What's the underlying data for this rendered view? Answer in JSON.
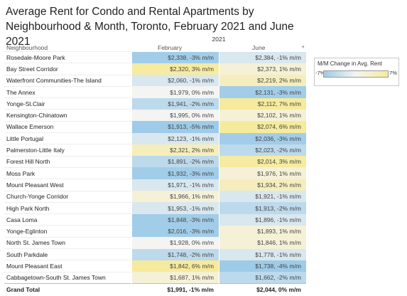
{
  "title_line1": "Average Rent for Condo and Rental Apartments by",
  "title_line2": "Neighbourhood & Month, Toronto, February 2021 and June 2021",
  "year_header": "2021",
  "col_neighbourhood": "Neighbourhood",
  "col_february": "February",
  "col_june": "June",
  "legend": {
    "title": "M/M Change in Avg. Rent",
    "min_label": "-7%",
    "max_label": "7%",
    "min_value": -7,
    "max_value": 7,
    "color_low": "#9dcbe8",
    "color_mid": "#f4f4f2",
    "color_high": "#f6ea9c"
  },
  "chart_data": {
    "type": "table",
    "rows": [
      {
        "name": "Rosedale-Moore Park",
        "feb": "$2,338, -3% m/m",
        "feb_change": -3,
        "jun": "$2,384, -1% m/m",
        "jun_change": -1
      },
      {
        "name": "Bay Street Corridor",
        "feb": "$2,320, 3% m/m",
        "feb_change": 3,
        "jun": "$2,373, 1% m/m",
        "jun_change": 1
      },
      {
        "name": "Waterfront Communities-The Island",
        "feb": "$2,060, -1% m/m",
        "feb_change": -1,
        "jun": "$2,219, 2% m/m",
        "jun_change": 2
      },
      {
        "name": "The Annex",
        "feb": "$1,979, 0% m/m",
        "feb_change": 0,
        "jun": "$2,131, -3% m/m",
        "jun_change": -3
      },
      {
        "name": "Yonge-St.Clair",
        "feb": "$1,941, -2% m/m",
        "feb_change": -2,
        "jun": "$2,112, 7% m/m",
        "jun_change": 7
      },
      {
        "name": "Kensington-Chinatown",
        "feb": "$1,995, 0% m/m",
        "feb_change": 0,
        "jun": "$2,102, 1% m/m",
        "jun_change": 1
      },
      {
        "name": "Wallace Emerson",
        "feb": "$1,913, -5% m/m",
        "feb_change": -5,
        "jun": "$2,074, 6% m/m",
        "jun_change": 6
      },
      {
        "name": "Little Portugal",
        "feb": "$2,123, -1% m/m",
        "feb_change": -1,
        "jun": "$2,036, -3% m/m",
        "jun_change": -3
      },
      {
        "name": "Palmerston-Little Italy",
        "feb": "$2,321, 2% m/m",
        "feb_change": 2,
        "jun": "$2,023, -2% m/m",
        "jun_change": -2
      },
      {
        "name": "Forest Hill North",
        "feb": "$1,891, -2% m/m",
        "feb_change": -2,
        "jun": "$2,014, 3% m/m",
        "jun_change": 3
      },
      {
        "name": "Moss Park",
        "feb": "$1,932, -3% m/m",
        "feb_change": -3,
        "jun": "$1,976, 1% m/m",
        "jun_change": 1
      },
      {
        "name": "Mount Pleasant West",
        "feb": "$1,971, -1% m/m",
        "feb_change": -1,
        "jun": "$1,934, 2% m/m",
        "jun_change": 2
      },
      {
        "name": "Church-Yonge Corridor",
        "feb": "$1,966, 1% m/m",
        "feb_change": 1,
        "jun": "$1,921, -1% m/m",
        "jun_change": -1
      },
      {
        "name": "High Park North",
        "feb": "$1,953, -1% m/m",
        "feb_change": -1,
        "jun": "$1,913, -2% m/m",
        "jun_change": -2
      },
      {
        "name": "Casa Loma",
        "feb": "$1,848, -3% m/m",
        "feb_change": -3,
        "jun": "$1,896, -1% m/m",
        "jun_change": -1
      },
      {
        "name": "Yonge-Eglinton",
        "feb": "$2,016, -3% m/m",
        "feb_change": -3,
        "jun": "$1,893, 1% m/m",
        "jun_change": 1
      },
      {
        "name": "North St. James Town",
        "feb": "$1,928, 0% m/m",
        "feb_change": 0,
        "jun": "$1,846, 1% m/m",
        "jun_change": 1
      },
      {
        "name": "South Parkdale",
        "feb": "$1,748, -2% m/m",
        "feb_change": -2,
        "jun": "$1,778, -1% m/m",
        "jun_change": -1
      },
      {
        "name": "Mount Pleasant East",
        "feb": "$1,842, 6% m/m",
        "feb_change": 6,
        "jun": "$1,738, -4% m/m",
        "jun_change": -4
      },
      {
        "name": "Cabbagetown-South St. James Town",
        "feb": "$1,687, 1% m/m",
        "feb_change": 1,
        "jun": "$1,662, -2% m/m",
        "jun_change": -2
      }
    ],
    "grand_total": {
      "name": "Grand Total",
      "feb": "$1,991, -1% m/m",
      "jun": "$2,044, 0% m/m"
    }
  }
}
